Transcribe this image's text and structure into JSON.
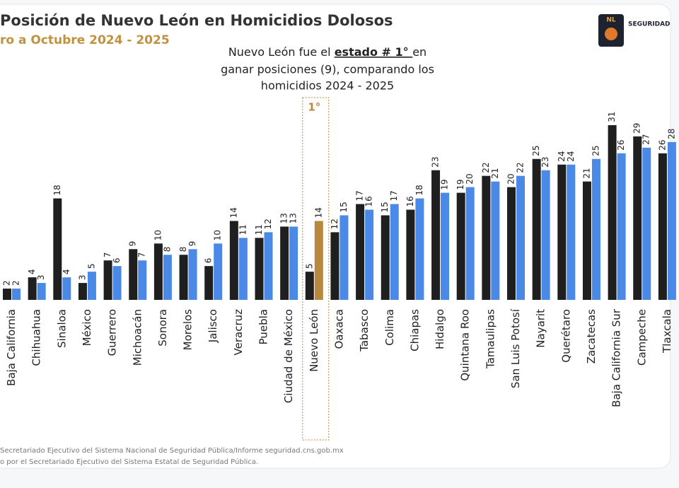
{
  "chart_data": {
    "type": "bar",
    "title": "Posición de Nuevo León en Homicidios Dolosos",
    "subtitle": "ro a Octubre 2024 - 2025",
    "annotation": {
      "line1_start": "Nuevo León fue el ",
      "line1_emph": "estado # 1° ",
      "line1_end": " en",
      "line2": "ganar posiciones (9), comparando los",
      "line3": "homicidios 2024 - 2025"
    },
    "highlight": {
      "category": "Nuevo León",
      "label": "1°",
      "color": "#b8883e"
    },
    "categories": [
      "Baja California",
      "Chihuahua",
      "Sinaloa",
      "México",
      "Guerrero",
      "Michoacán",
      "Sonora",
      "Morelos",
      "Jalisco",
      "Veracruz",
      "Puebla",
      "Ciudad de México",
      "Nuevo León",
      "Oaxaca",
      "Tabasco",
      "Colima",
      "Chiapas",
      "Hidalgo",
      "Quintana Roo",
      "Tamaulipas",
      "San Luis Potosí",
      "Nayarit",
      "Querétaro",
      "Zacatecas",
      "Baja California Sur",
      "Campeche",
      "Tlaxcala"
    ],
    "series": [
      {
        "color": "#1f1f1f",
        "values": [
          2,
          4,
          18,
          3,
          7,
          9,
          10,
          8,
          6,
          14,
          11,
          13,
          5,
          12,
          17,
          15,
          16,
          23,
          19,
          22,
          20,
          25,
          24,
          21,
          31,
          29,
          26
        ]
      },
      {
        "color": "#4a8ae6",
        "values": [
          2,
          3,
          4,
          5,
          6,
          7,
          8,
          9,
          10,
          11,
          12,
          13,
          14,
          15,
          16,
          17,
          18,
          19,
          20,
          21,
          22,
          23,
          24,
          25,
          26,
          27,
          28
        ]
      }
    ],
    "logo": {
      "mark": "NL",
      "name": "SEGURIDAD"
    },
    "footnotes": [
      "Secretariado Ejecutivo del Sistema Nacional de Seguridad Pública/Informe seguridad.cns.gob.mx",
      "o por el Secretariado Ejecutivo del Sistema Estatal de Seguridad Pública."
    ]
  }
}
